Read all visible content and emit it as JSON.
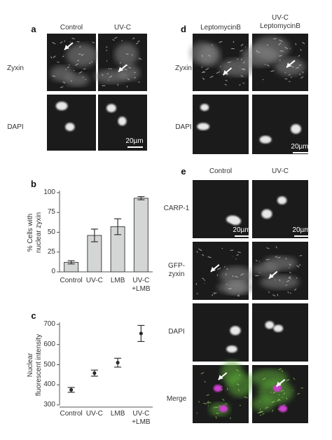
{
  "panel_a": {
    "label": "a",
    "columns": [
      "Control",
      "UV-C"
    ],
    "rows": [
      "Zyxin",
      "DAPI"
    ],
    "scale_bar": "20µm"
  },
  "panel_d": {
    "label": "d",
    "columns": [
      "LeptomycinB",
      "UV-C\nLeptomycinB"
    ],
    "rows": [
      "Zyxin",
      "DAPI"
    ],
    "scale_bar": "20µm"
  },
  "panel_e": {
    "label": "e",
    "columns": [
      "Control",
      "UV-C"
    ],
    "rows": [
      "CARP-1",
      "GFP-\nzyxin",
      "DAPI",
      "Merge"
    ],
    "scale_bar": "20µm"
  },
  "chart_data": [
    {
      "type": "bar",
      "label": "b",
      "ylabel": "% Cells with\nnuclear zyxin",
      "categories": [
        "Control",
        "UV-C",
        "LMB",
        "UV-C\n+LMB"
      ],
      "values": [
        12,
        46,
        57,
        93
      ],
      "errors": [
        2,
        8,
        10,
        2
      ],
      "color": "#d4d6d6",
      "ylim": [
        0,
        100
      ],
      "yticks": [
        0,
        25,
        50,
        75,
        100
      ]
    },
    {
      "type": "scatter",
      "label": "c",
      "ylabel": "Nuclear\nfluorescent intensity",
      "categories": [
        "Control",
        "UV-C",
        "LMB",
        "UV-C\n+LMB"
      ],
      "values": [
        375,
        458,
        510,
        655
      ],
      "errors": [
        12,
        15,
        22,
        40
      ],
      "color": "#222222",
      "ylim": [
        300,
        700
      ],
      "yticks": [
        300,
        400,
        500,
        600,
        700
      ]
    }
  ]
}
